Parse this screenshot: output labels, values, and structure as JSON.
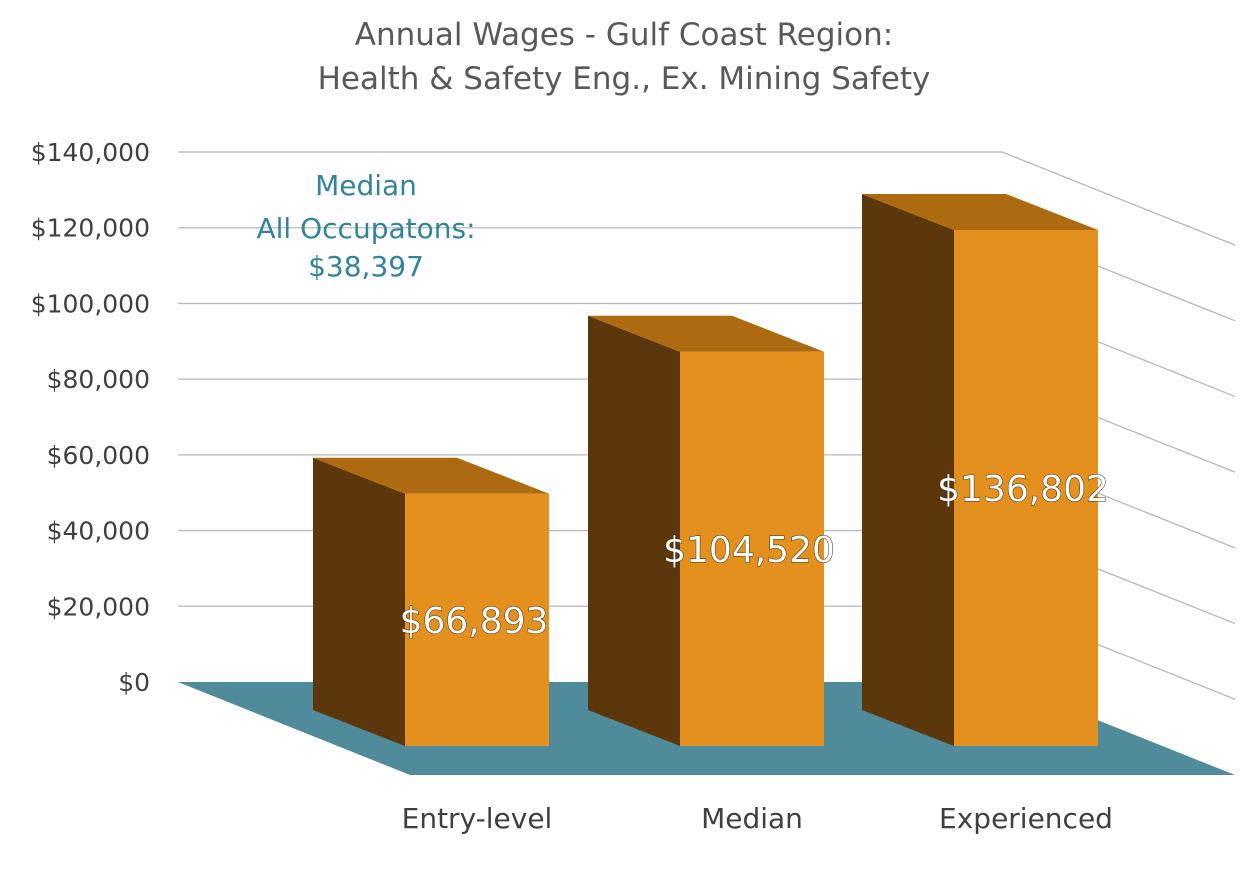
{
  "chart_data": {
    "type": "bar",
    "title": [
      "Annual Wages - Gulf Coast Region:",
      "Health & Safety Eng., Ex. Mining Safety"
    ],
    "categories": [
      "Entry-level",
      "Median",
      "Experienced"
    ],
    "values": [
      66893,
      104520,
      136802
    ],
    "data_labels": [
      "$66,893",
      "$104,520",
      "$136,802"
    ],
    "ylim": [
      0,
      140000
    ],
    "y_ticks": [
      0,
      20000,
      40000,
      60000,
      80000,
      100000,
      120000,
      140000
    ],
    "y_tick_labels": [
      "$0",
      "$20,000",
      "$40,000",
      "$60,000",
      "$80,000",
      "$100,000",
      "$120,000",
      "$140,000"
    ],
    "grid": true,
    "style": "3d-columns",
    "annotation": {
      "lines": [
        "Median",
        "All Occupatons:",
        "$38,397"
      ],
      "value": 38397
    },
    "colors": {
      "bar_front": "#e4901e",
      "bar_top": "#ad6a10",
      "bar_side": "#5c370c",
      "floor": "#4f8b9b",
      "annotation": "#31849b",
      "grid": "#b8b8b8"
    }
  }
}
